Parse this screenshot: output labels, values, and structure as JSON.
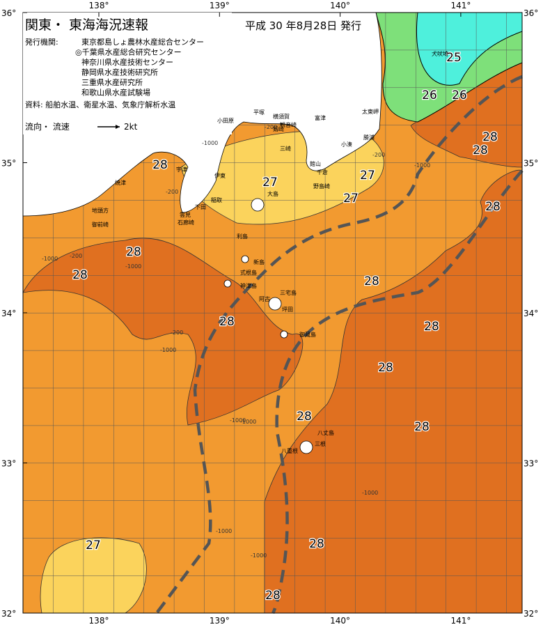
{
  "header": {
    "title": "関東・ 東海海況速報",
    "issue": "平成 30 年8月28日 発行"
  },
  "issuers": {
    "label": "発行機関:",
    "items": [
      "東京都島しょ農林水産総合センター",
      "◎千葉県水産総合研究センター",
      "神奈川県水産技術センター",
      "静岡県水産技術研究所",
      "三重県水産研究所",
      "和歌山県水産試験場"
    ]
  },
  "source": "資料: 船舶水温、衛星水温、気象庁解析水温",
  "legend": {
    "label": "流向・ 流速",
    "speed": "2kt"
  },
  "axes": {
    "lon_ticks": [
      {
        "value": 138,
        "label": "138°"
      },
      {
        "value": 139,
        "label": "139°"
      },
      {
        "value": 140,
        "label": "140°"
      },
      {
        "value": 141,
        "label": "141°"
      }
    ],
    "lat_ticks": [
      {
        "value": 36,
        "label": "36°"
      },
      {
        "value": 35,
        "label": "35°"
      },
      {
        "value": 34,
        "label": "34°"
      },
      {
        "value": 33,
        "label": "33°"
      },
      {
        "value": 32,
        "label": "32°"
      }
    ]
  },
  "temperature_labels": [
    25,
    26,
    26,
    28,
    28,
    28,
    27,
    27,
    27,
    28,
    28,
    28,
    28,
    28,
    28,
    28,
    28,
    28,
    27,
    28,
    28
  ],
  "depth_labels": [
    "-1000",
    "-200",
    "-200",
    "-1000",
    "-200",
    "-1000",
    "-200",
    "-1000",
    "-1000",
    "-1000",
    "-1000",
    "-1000",
    "-1000",
    "-200",
    "-1000"
  ],
  "places": [
    "犬吠埼",
    "太東岬",
    "勝浦",
    "小湊",
    "館山",
    "千倉",
    "野島崎",
    "平塚",
    "横須賀",
    "観音崎",
    "剱崎",
    "三崎",
    "富津",
    "小田原",
    "伊東",
    "稲取",
    "下田",
    "石廊崎",
    "雲見",
    "宇津",
    "焼津",
    "地頭方",
    "御前崎",
    "大島",
    "利島",
    "新島",
    "式根島",
    "神津島",
    "三宅島",
    "阿古",
    "坪田",
    "御蔵島",
    "八丈島",
    "八重根",
    "三根"
  ]
}
